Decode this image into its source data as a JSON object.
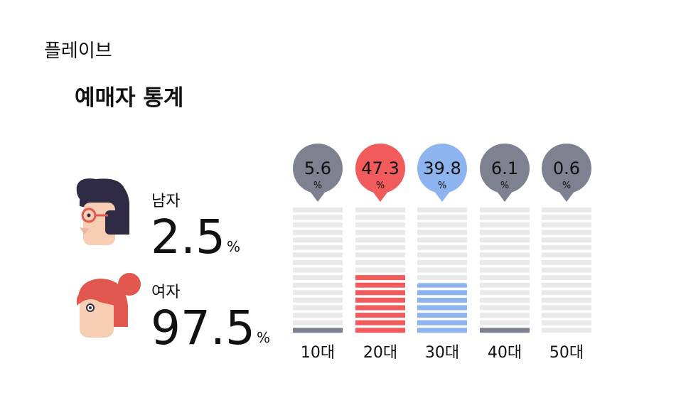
{
  "app_name": "플레이브",
  "title": "예매자 통계",
  "gender": [
    {
      "label": "남자",
      "value": 2.5,
      "unit": "%"
    },
    {
      "label": "여자",
      "value": 97.5,
      "unit": "%"
    }
  ],
  "chart_data": {
    "type": "bar",
    "categories": [
      "10대",
      "20대",
      "30대",
      "40대",
      "50대"
    ],
    "values": [
      5.6,
      47.3,
      39.8,
      6.1,
      0.6
    ],
    "unit": "%",
    "colors": [
      "#7e8190",
      "#f25b5b",
      "#8db4ee",
      "#7e8190",
      "#7e8190"
    ],
    "ylim": [
      0,
      100
    ]
  }
}
